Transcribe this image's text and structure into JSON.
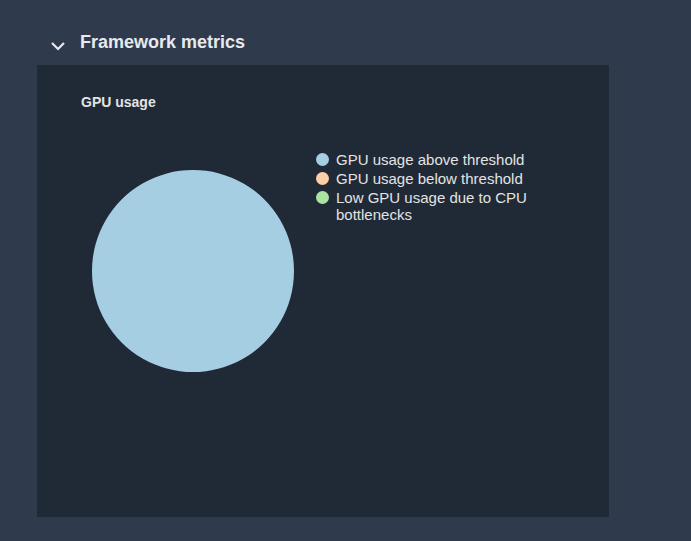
{
  "section": "Framework metrics",
  "chart_data": {
    "type": "pie",
    "title": "GPU usage",
    "categories": [
      "GPU usage above threshold",
      "GPU usage below threshold",
      "Low GPU usage due to CPU bottlenecks"
    ],
    "values": [
      100,
      0,
      0
    ],
    "colors": [
      "#a6cee3",
      "#fdcfa6",
      "#ade3a0"
    ],
    "legend": "right"
  }
}
